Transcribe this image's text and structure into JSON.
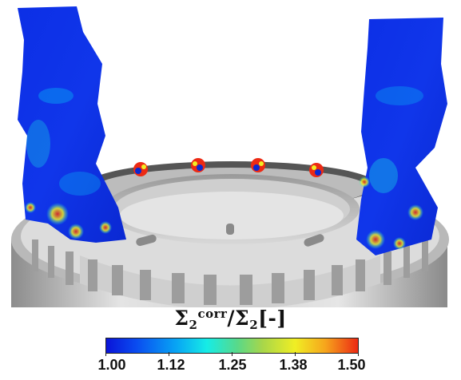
{
  "colorbar": {
    "title": {
      "main": "Σ",
      "main_sub": "2",
      "main_sup": "corr",
      "separator": "/Σ",
      "denominator_sub": "2",
      "unit": "[-]"
    },
    "ticks": [
      "1.00",
      "1.12",
      "1.25",
      "1.38",
      "1.50"
    ],
    "range": [
      1.0,
      1.5
    ],
    "colormap_stops": [
      "#0a14d8",
      "#08a6f4",
      "#16ece6",
      "#a7d64a",
      "#f0ee24",
      "#f6a51c",
      "#ec2a14"
    ]
  },
  "scene": {
    "description_icons": [
      "annular-combustor-chamber",
      "flame-surface-plumes",
      "injector-flames"
    ]
  }
}
